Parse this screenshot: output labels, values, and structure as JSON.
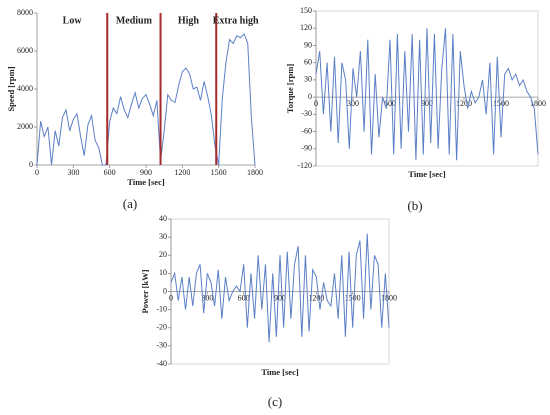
{
  "chart_data": [
    {
      "type": "line",
      "panel_label": "(a)",
      "x_label": "Time [sec]",
      "y_label": "Speed [rpm]",
      "phases": [
        "Low",
        "Medium",
        "High",
        "Extra high"
      ],
      "phase_boundaries": [
        580,
        1020,
        1480
      ],
      "phase_color": "#a52a2a",
      "x": [
        0,
        30,
        60,
        90,
        120,
        150,
        180,
        210,
        240,
        270,
        300,
        330,
        360,
        390,
        420,
        450,
        480,
        510,
        540,
        570,
        600,
        630,
        660,
        690,
        720,
        750,
        780,
        810,
        840,
        870,
        900,
        930,
        960,
        990,
        1020,
        1050,
        1080,
        1110,
        1140,
        1170,
        1200,
        1230,
        1260,
        1290,
        1320,
        1350,
        1380,
        1410,
        1440,
        1470,
        1500,
        1530,
        1560,
        1590,
        1620,
        1650,
        1680,
        1710,
        1740,
        1770,
        1800
      ],
      "series": [
        {
          "name": "Speed",
          "color": "#5b7fc6",
          "values": [
            0,
            2300,
            1500,
            2000,
            0,
            1800,
            1000,
            2500,
            2900,
            1800,
            2400,
            2700,
            1500,
            500,
            2100,
            2600,
            1300,
            900,
            0,
            0,
            2300,
            3000,
            2700,
            3600,
            2900,
            2500,
            3200,
            3800,
            3000,
            3500,
            3700,
            3200,
            2600,
            3400,
            200,
            1800,
            3700,
            3400,
            3300,
            4200,
            4900,
            5100,
            4800,
            4000,
            4100,
            3400,
            4400,
            3600,
            2600,
            1000,
            0,
            3500,
            5400,
            6600,
            6400,
            6800,
            6700,
            6900,
            6400,
            2500,
            0
          ]
        }
      ],
      "xlim": [
        0,
        1800
      ],
      "xticks": [
        0,
        300,
        600,
        900,
        1200,
        1500,
        1800
      ],
      "ylim": [
        0,
        8000
      ],
      "yticks": [
        0,
        2000,
        4000,
        6000,
        8000
      ]
    },
    {
      "type": "line",
      "panel_label": "(b)",
      "x_label": "Time [sec]",
      "y_label": "Torque [rpm]",
      "x": [
        0,
        30,
        60,
        90,
        120,
        150,
        180,
        210,
        240,
        270,
        300,
        330,
        360,
        390,
        420,
        450,
        480,
        510,
        540,
        570,
        600,
        630,
        660,
        690,
        720,
        750,
        780,
        810,
        840,
        870,
        900,
        930,
        960,
        990,
        1020,
        1050,
        1080,
        1110,
        1140,
        1170,
        1200,
        1230,
        1260,
        1290,
        1320,
        1350,
        1380,
        1410,
        1440,
        1470,
        1500,
        1530,
        1560,
        1590,
        1620,
        1650,
        1680,
        1710,
        1740,
        1770,
        1800
      ],
      "series": [
        {
          "name": "Torque",
          "color": "#5b7fc6",
          "values": [
            40,
            80,
            -30,
            60,
            -60,
            70,
            -80,
            60,
            30,
            -90,
            50,
            0,
            80,
            -60,
            100,
            -100,
            40,
            -70,
            0,
            -20,
            100,
            -100,
            110,
            -90,
            80,
            -60,
            110,
            -110,
            100,
            -100,
            120,
            -80,
            110,
            -90,
            50,
            120,
            -100,
            110,
            -110,
            80,
            20,
            -20,
            10,
            -10,
            0,
            30,
            -30,
            60,
            -100,
            70,
            -70,
            40,
            50,
            30,
            40,
            20,
            30,
            10,
            0,
            -20,
            -100
          ]
        }
      ],
      "xlim": [
        0,
        1800
      ],
      "xticks": [
        0,
        300,
        600,
        900,
        1200,
        1500,
        1800
      ],
      "ylim": [
        -120,
        150
      ],
      "yticks": [
        -120,
        -90,
        -60,
        -30,
        0,
        30,
        60,
        90,
        120,
        150
      ]
    },
    {
      "type": "line",
      "panel_label": "(c)",
      "x_label": "Time [sec]",
      "y_label": "Power [kW]",
      "x": [
        0,
        30,
        60,
        90,
        120,
        150,
        180,
        210,
        240,
        270,
        300,
        330,
        360,
        390,
        420,
        450,
        480,
        510,
        540,
        570,
        600,
        630,
        660,
        690,
        720,
        750,
        780,
        810,
        840,
        870,
        900,
        930,
        960,
        990,
        1020,
        1050,
        1080,
        1110,
        1140,
        1170,
        1200,
        1230,
        1260,
        1290,
        1320,
        1350,
        1380,
        1410,
        1440,
        1470,
        1500,
        1530,
        1560,
        1590,
        1620,
        1650,
        1680,
        1710,
        1740,
        1770,
        1800
      ],
      "series": [
        {
          "name": "Power",
          "color": "#5b7fc6",
          "values": [
            5,
            10,
            -5,
            8,
            -10,
            8,
            -8,
            10,
            15,
            -12,
            10,
            5,
            -8,
            12,
            -15,
            8,
            -5,
            0,
            3,
            0,
            15,
            -20,
            10,
            -15,
            20,
            -10,
            15,
            -28,
            10,
            -25,
            20,
            -20,
            22,
            -15,
            15,
            25,
            -25,
            20,
            -22,
            12,
            8,
            -10,
            5,
            -5,
            -8,
            10,
            -15,
            20,
            -25,
            22,
            -20,
            20,
            28,
            -15,
            32,
            -10,
            20,
            15,
            -20,
            10,
            -20
          ]
        }
      ],
      "xlim": [
        0,
        1800
      ],
      "xticks": [
        0,
        300,
        600,
        900,
        1200,
        1500,
        1800
      ],
      "ylim": [
        -40,
        40
      ],
      "yticks": [
        -40,
        -30,
        -20,
        -10,
        0,
        10,
        20,
        30,
        40
      ]
    }
  ]
}
